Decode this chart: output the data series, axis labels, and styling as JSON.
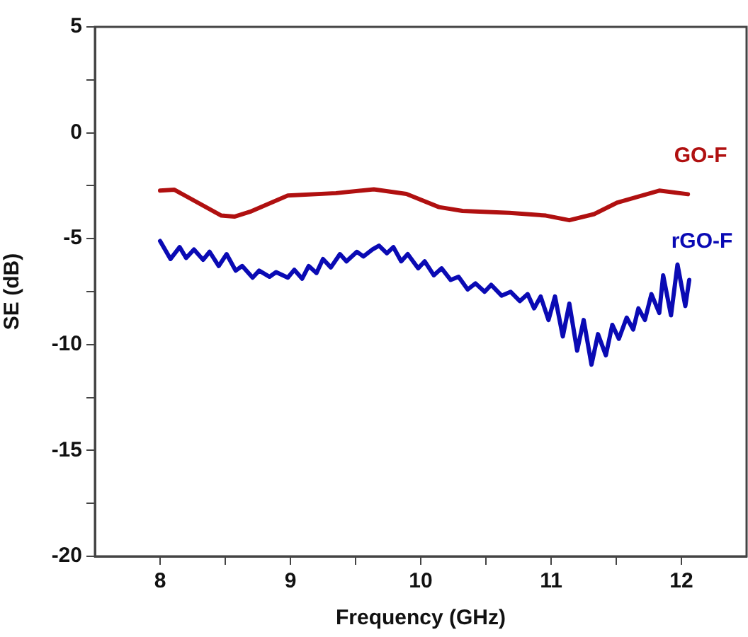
{
  "chart_data": {
    "type": "line",
    "xlabel": "Frequency (GHz)",
    "ylabel": "SE (dB)",
    "xlim": [
      7.5,
      12.5
    ],
    "ylim": [
      -20,
      5
    ],
    "xticks": [
      8,
      {
        "value": 8.5,
        "label": null
      },
      9,
      {
        "value": 9.5,
        "label": null
      },
      10,
      {
        "value": 10.5,
        "label": null
      },
      11,
      {
        "value": 11.5,
        "label": null
      },
      12
    ],
    "yticks": [
      -20,
      {
        "value": -17.5,
        "label": null
      },
      -15,
      {
        "value": -12.5,
        "label": null
      },
      -10,
      {
        "value": -7.5,
        "label": null
      },
      -5,
      {
        "value": -2.5,
        "label": null
      },
      0,
      {
        "value": 2.5,
        "label": null
      },
      5
    ],
    "grid": false,
    "legend": false,
    "marker": "none",
    "line_style": "solid",
    "series": [
      {
        "name": "GO-F",
        "color": "#b01010",
        "x": [
          8.0,
          8.11,
          8.47,
          8.57,
          8.69,
          8.98,
          9.35,
          9.64,
          9.89,
          10.14,
          10.32,
          10.68,
          10.96,
          11.14,
          11.33,
          11.51,
          11.83,
          12.05
        ],
        "values": [
          -2.73,
          -2.69,
          -3.91,
          -3.96,
          -3.73,
          -2.96,
          -2.85,
          -2.67,
          -2.89,
          -3.51,
          -3.69,
          -3.78,
          -3.91,
          -4.13,
          -3.84,
          -3.29,
          -2.73,
          -2.9
        ]
      },
      {
        "name": "rGO-F",
        "color": "#0a0ab4",
        "x": [
          8.0,
          8.08,
          8.15,
          8.2,
          8.26,
          8.33,
          8.38,
          8.45,
          8.51,
          8.58,
          8.63,
          8.71,
          8.76,
          8.84,
          8.89,
          8.98,
          9.03,
          9.09,
          9.14,
          9.2,
          9.25,
          9.31,
          9.38,
          9.43,
          9.51,
          9.56,
          9.63,
          9.68,
          9.74,
          9.79,
          9.85,
          9.9,
          9.98,
          10.03,
          10.1,
          10.16,
          10.23,
          10.29,
          10.36,
          10.42,
          10.49,
          10.54,
          10.62,
          10.69,
          10.76,
          10.82,
          10.87,
          10.92,
          10.98,
          11.03,
          11.09,
          11.14,
          11.2,
          11.25,
          11.31,
          11.36,
          11.42,
          11.47,
          11.52,
          11.58,
          11.63,
          11.67,
          11.72,
          11.77,
          11.83,
          11.86,
          11.92,
          11.97,
          12.03,
          12.06
        ],
        "values": [
          -5.11,
          -5.96,
          -5.4,
          -5.91,
          -5.51,
          -6.0,
          -5.62,
          -6.29,
          -5.73,
          -6.51,
          -6.29,
          -6.84,
          -6.51,
          -6.8,
          -6.58,
          -6.84,
          -6.47,
          -6.89,
          -6.29,
          -6.62,
          -5.96,
          -6.36,
          -5.73,
          -6.07,
          -5.62,
          -5.84,
          -5.51,
          -5.33,
          -5.69,
          -5.4,
          -6.07,
          -5.73,
          -6.4,
          -6.07,
          -6.73,
          -6.4,
          -6.95,
          -6.8,
          -7.4,
          -7.11,
          -7.51,
          -7.18,
          -7.69,
          -7.51,
          -7.95,
          -7.62,
          -8.29,
          -7.73,
          -8.84,
          -7.73,
          -9.62,
          -8.07,
          -10.29,
          -8.84,
          -10.95,
          -9.51,
          -10.51,
          -9.07,
          -9.73,
          -8.73,
          -9.29,
          -8.29,
          -8.84,
          -7.62,
          -8.51,
          -6.73,
          -8.62,
          -6.22,
          -8.18,
          -6.95
        ]
      }
    ]
  }
}
